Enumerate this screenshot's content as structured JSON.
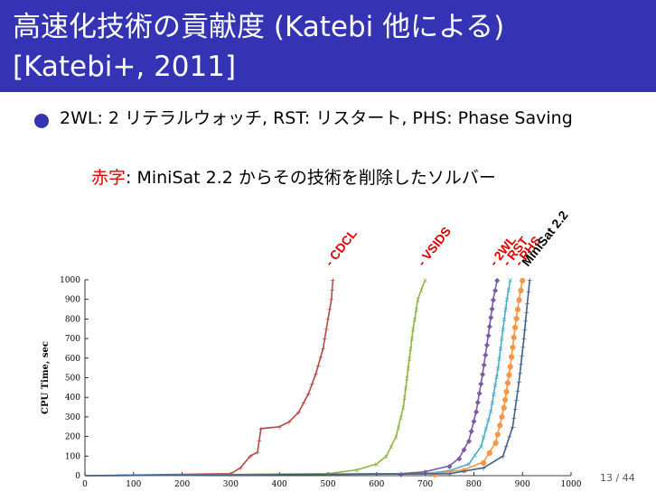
{
  "slide": {
    "title_line1": "高速化技術の貢献度 (Katebi 他による)",
    "title_line2": "[Katebi+, 2011]",
    "bullet": "2WL: 2 リテラルウォッチ, RST: リスタート, PHS: Phase Saving",
    "note_red": "赤字",
    "note_rest": ": MiniSat 2.2 からその技術を削除したソルバー",
    "page": "13 / 44"
  },
  "colors": {
    "title_bg": "#3333b3",
    "bullet": "#3333b3",
    "label_red": "#e00000"
  },
  "chart_data": {
    "type": "line",
    "ylabel": "CPU Time, sec",
    "xlabel": "",
    "xlim": [
      0,
      1000
    ],
    "ylim": [
      0,
      1000
    ],
    "xticks": [
      0,
      100,
      200,
      300,
      400,
      500,
      600,
      700,
      800,
      900,
      1000
    ],
    "yticks": [
      0,
      100,
      200,
      300,
      400,
      500,
      600,
      700,
      800,
      900,
      1000
    ],
    "series": [
      {
        "name": "-CDCL",
        "label": "- CDCL",
        "color": "#b34a47",
        "marker": "+",
        "x": [
          0,
          300,
          320,
          340,
          355,
          362,
          400,
          420,
          440,
          460,
          475,
          490,
          500,
          507,
          510
        ],
        "y": [
          0,
          10,
          40,
          100,
          120,
          240,
          250,
          275,
          325,
          420,
          520,
          650,
          800,
          900,
          1000
        ]
      },
      {
        "name": "-VSIDS",
        "label": "- VSIDS",
        "color": "#8fb444",
        "marker": "x",
        "x": [
          0,
          500,
          560,
          600,
          620,
          640,
          655,
          665,
          675,
          685,
          692,
          700
        ],
        "y": [
          0,
          10,
          30,
          60,
          100,
          200,
          350,
          550,
          750,
          900,
          950,
          1000
        ]
      },
      {
        "name": "-2WL",
        "label": "- 2WL",
        "color": "#7b5aa6",
        "marker": "◆",
        "x": [
          0,
          650,
          700,
          750,
          770,
          790,
          805,
          818,
          830,
          840,
          848
        ],
        "y": [
          0,
          10,
          20,
          50,
          90,
          180,
          330,
          520,
          720,
          900,
          1000
        ]
      },
      {
        "name": "-RST",
        "label": "- RST",
        "color": "#4bacc6",
        "marker": "×",
        "x": [
          0,
          700,
          750,
          790,
          815,
          835,
          850,
          860,
          868,
          875
        ],
        "y": [
          0,
          10,
          25,
          60,
          150,
          330,
          550,
          750,
          900,
          1000
        ]
      },
      {
        "name": "-PHS",
        "label": "- PHS",
        "color": "#f79646",
        "marker": "●",
        "x": [
          0,
          720,
          780,
          820,
          845,
          862,
          875,
          885,
          893,
          900
        ],
        "y": [
          0,
          10,
          30,
          70,
          170,
          350,
          560,
          760,
          900,
          1000
        ]
      },
      {
        "name": "MiniSat 2.2",
        "label": "MiniSat 2.2",
        "color": "#3e5f8a",
        "marker": "+",
        "x": [
          0,
          750,
          820,
          860,
          880,
          893,
          903,
          910,
          915
        ],
        "y": [
          0,
          10,
          40,
          100,
          250,
          480,
          700,
          880,
          1000
        ]
      }
    ]
  }
}
